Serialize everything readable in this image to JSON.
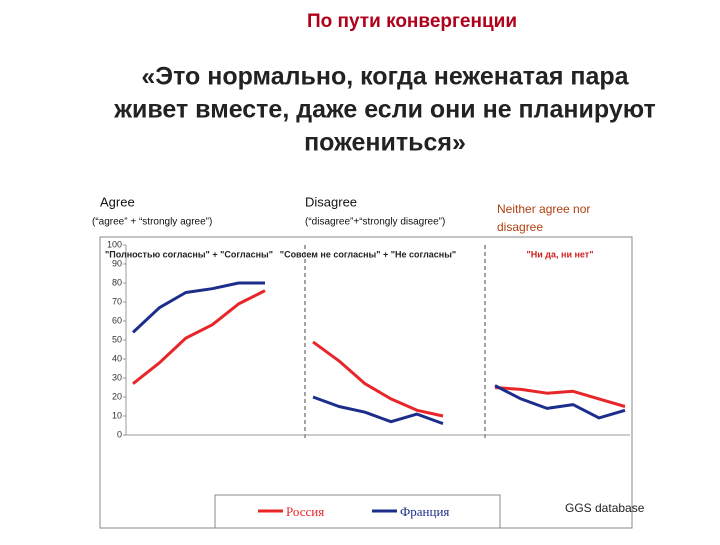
{
  "title": "По пути конвергенции",
  "quote": [
    "«Это нормально, когда неженатая пара",
    "живет вместе, даже если они не планируют",
    "пожениться»"
  ],
  "source": "GGS database",
  "chart_data": {
    "type": "line",
    "ylim": [
      0,
      100
    ],
    "yticks": [
      0,
      10,
      20,
      30,
      40,
      50,
      60,
      70,
      80,
      90,
      100
    ],
    "legend": [
      {
        "name": "Россия",
        "color": "#e8262a"
      },
      {
        "name": "Франция",
        "color": "#1c2e8c"
      }
    ],
    "panels": [
      {
        "heading": "Agree",
        "subheading": "(“agree” + “strongly agree”)",
        "inner_label": "\"Полностью согласны\" + \"Согласны\"",
        "series": [
          {
            "values": [
              27,
              38,
              51,
              58,
              69,
              76
            ]
          },
          {
            "values": [
              54,
              67,
              75,
              77,
              80,
              80
            ]
          }
        ]
      },
      {
        "heading": "Disagree",
        "subheading": "(“disagree”+“strongly disagree”)",
        "inner_label": "\"Совсем не согласны\" + \"Не согласны\"",
        "series": [
          {
            "values": [
              49,
              39,
              27,
              19,
              13,
              10
            ]
          },
          {
            "values": [
              20,
              15,
              12,
              7,
              11,
              6
            ]
          }
        ]
      },
      {
        "heading": "Neither agree nor disagree",
        "inner_label": "\"Ни да, ни нет\"",
        "series": [
          {
            "values": [
              25,
              24,
              22,
              23,
              19,
              15
            ]
          },
          {
            "values": [
              26,
              19,
              14,
              16,
              9,
              13
            ]
          }
        ]
      }
    ]
  }
}
